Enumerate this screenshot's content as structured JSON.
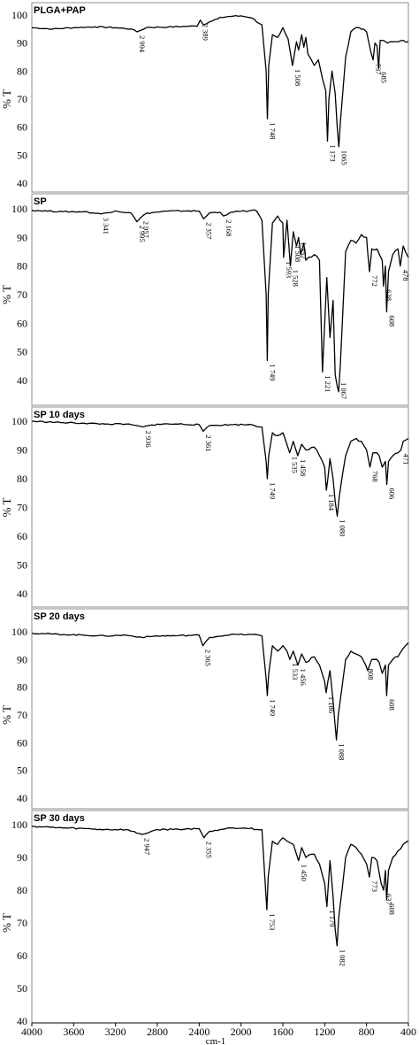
{
  "chart_data": [
    {
      "type": "line",
      "title": "PLGA+PAP",
      "ylabel": "% T",
      "ylim": [
        40,
        100
      ],
      "yticks": [
        "40",
        "50",
        "60",
        "70",
        "80",
        "90",
        "100"
      ],
      "series": [
        {
          "x": [
            4000,
            3800,
            3600,
            3400,
            3200,
            3050,
            2994,
            2900,
            2700,
            2500,
            2420,
            2389,
            2360,
            2300,
            2200,
            2100,
            2000,
            1900,
            1850,
            1800,
            1760,
            1748,
            1735,
            1700,
            1650,
            1600,
            1550,
            1508,
            1470,
            1450,
            1420,
            1400,
            1380,
            1360,
            1300,
            1260,
            1220,
            1190,
            1173,
            1160,
            1130,
            1100,
            1080,
            1065,
            1050,
            1000,
            950,
            900,
            850,
            800,
            760,
            737,
            720,
            700,
            685,
            670,
            600,
            500,
            450,
            400
          ],
          "y": [
            95.5,
            95.0,
            95.5,
            95.8,
            95.5,
            95.0,
            94.0,
            95.6,
            95.7,
            96.0,
            96.0,
            98.2,
            96.5,
            97.6,
            99.2,
            99.5,
            99.7,
            99.0,
            97.5,
            96.5,
            80.0,
            63.0,
            82.0,
            93.0,
            92.0,
            95.5,
            91.5,
            82.0,
            90.5,
            87.5,
            93.0,
            88.5,
            92.0,
            86.0,
            82.0,
            84.0,
            77.0,
            73.0,
            55.0,
            70.0,
            80.0,
            72.0,
            60.0,
            53.0,
            62.0,
            85.0,
            94.0,
            95.5,
            95.0,
            94.0,
            87.0,
            84.0,
            90.0,
            89.0,
            81.0,
            91.0,
            90.0,
            90.5,
            91.0,
            90.5
          ]
        }
      ],
      "peak_labels": [
        {
          "x": 2994,
          "label": "2 994"
        },
        {
          "x": 2389,
          "label": "2 389"
        },
        {
          "x": 1748,
          "label": "1 748"
        },
        {
          "x": 1508,
          "label": "1 508"
        },
        {
          "x": 1173,
          "label": "1 173"
        },
        {
          "x": 1065,
          "label": "1065"
        },
        {
          "x": 737,
          "label": "737"
        },
        {
          "x": 685,
          "label": "685"
        }
      ]
    },
    {
      "type": "line",
      "title": "SP",
      "ylabel": "% T",
      "ylim": [
        30,
        100
      ],
      "yticks": [
        "40",
        "50",
        "60",
        "70",
        "80",
        "90",
        "100"
      ],
      "series": [
        {
          "x": [
            4000,
            3700,
            3500,
            3341,
            3200,
            3050,
            2995,
            2957,
            2900,
            2700,
            2500,
            2400,
            2357,
            2300,
            2200,
            2168,
            2100,
            2000,
            1850,
            1800,
            1760,
            1749,
            1740,
            1700,
            1650,
            1600,
            1593,
            1560,
            1528,
            1500,
            1470,
            1450,
            1430,
            1400,
            1380,
            1300,
            1250,
            1221,
            1200,
            1180,
            1150,
            1120,
            1100,
            1080,
            1067,
            1050,
            1000,
            950,
            900,
            850,
            800,
            790,
            772,
            750,
            700,
            650,
            638,
            620,
            608,
            590,
            550,
            500,
            478,
            450,
            400
          ],
          "y": [
            99.5,
            99.0,
            99.0,
            98.2,
            99.3,
            98.5,
            95.5,
            97.0,
            98.5,
            99.2,
            99.3,
            99.2,
            96.5,
            98.6,
            98.8,
            97.5,
            98.8,
            99.2,
            99.2,
            96.0,
            70.0,
            47.0,
            70.0,
            95.0,
            97.5,
            95.0,
            83.0,
            96.0,
            80.0,
            92.0,
            87.0,
            90.0,
            84.0,
            88.0,
            82.0,
            84.0,
            82.0,
            43.0,
            60.0,
            76.0,
            55.0,
            68.0,
            42.0,
            38.0,
            36.0,
            46.0,
            85.0,
            89.0,
            88.0,
            91.0,
            90.0,
            85.0,
            78.0,
            86.0,
            86.0,
            82.0,
            73.0,
            80.0,
            64.0,
            78.0,
            84.0,
            86.0,
            80.0,
            87.0,
            83.0
          ]
        }
      ],
      "peak_labels": [
        {
          "x": 3341,
          "label": "3 341"
        },
        {
          "x": 2995,
          "label": "2 995"
        },
        {
          "x": 2957,
          "label": "2 957"
        },
        {
          "x": 2357,
          "label": "2 357"
        },
        {
          "x": 2168,
          "label": "2 168"
        },
        {
          "x": 1749,
          "label": "1 749"
        },
        {
          "x": 1593,
          "label": "1 593"
        },
        {
          "x": 1528,
          "label": "1 528"
        },
        {
          "x": 1508,
          "label": "1 508"
        },
        {
          "x": 1452,
          "label": "1 452"
        },
        {
          "x": 1221,
          "label": "1 221"
        },
        {
          "x": 1067,
          "label": "1 067"
        },
        {
          "x": 772,
          "label": "772"
        },
        {
          "x": 638,
          "label": "638"
        },
        {
          "x": 608,
          "label": "608"
        },
        {
          "x": 478,
          "label": "478"
        }
      ]
    },
    {
      "type": "line",
      "title": "SP 10 days",
      "ylabel": "% T",
      "ylim": [
        30,
        100
      ],
      "yticks": [
        "40",
        "50",
        "60",
        "70",
        "80",
        "90",
        "100"
      ],
      "series": [
        {
          "x": [
            4000,
            3700,
            3500,
            3300,
            3100,
            2936,
            2800,
            2600,
            2400,
            2361,
            2300,
            2100,
            1900,
            1800,
            1760,
            1749,
            1735,
            1700,
            1650,
            1600,
            1580,
            1535,
            1500,
            1458,
            1420,
            1380,
            1300,
            1250,
            1200,
            1184,
            1170,
            1150,
            1120,
            1100,
            1080,
            1060,
            1000,
            950,
            900,
            850,
            800,
            768,
            740,
            700,
            680,
            650,
            620,
            606,
            590,
            550,
            500,
            471,
            450,
            400
          ],
          "y": [
            100.0,
            99.5,
            99.3,
            99.0,
            99.0,
            98.0,
            99.0,
            99.0,
            98.8,
            96.5,
            98.5,
            98.8,
            98.8,
            98.0,
            86.0,
            80.0,
            88.0,
            96.0,
            95.0,
            96.0,
            94.0,
            89.0,
            93.0,
            88.0,
            92.0,
            90.0,
            91.0,
            88.0,
            84.0,
            76.0,
            80.0,
            87.0,
            80.0,
            72.0,
            67.0,
            74.0,
            88.0,
            93.0,
            94.0,
            93.0,
            90.0,
            84.0,
            89.0,
            89.0,
            88.0,
            84.0,
            86.0,
            78.0,
            86.0,
            88.0,
            89.0,
            90.0,
            93.0,
            94.0
          ]
        }
      ],
      "peak_labels": [
        {
          "x": 2936,
          "label": "2 936"
        },
        {
          "x": 2361,
          "label": "2 361"
        },
        {
          "x": 1749,
          "label": "1 749"
        },
        {
          "x": 1535,
          "label": "1 535"
        },
        {
          "x": 1458,
          "label": "1 458"
        },
        {
          "x": 1184,
          "label": "1 184"
        },
        {
          "x": 1080,
          "label": "1 080"
        },
        {
          "x": 768,
          "label": "768"
        },
        {
          "x": 606,
          "label": "606"
        },
        {
          "x": 471,
          "label": "471"
        }
      ]
    },
    {
      "type": "line",
      "title": "SP 20 days",
      "ylabel": "% T",
      "ylim": [
        30,
        100
      ],
      "yticks": [
        "40",
        "50",
        "60",
        "70",
        "80",
        "90",
        "100"
      ],
      "series": [
        {
          "x": [
            4000,
            3700,
            3500,
            3300,
            3100,
            2950,
            2800,
            2600,
            2400,
            2365,
            2300,
            2100,
            1900,
            1800,
            1760,
            1749,
            1735,
            1700,
            1650,
            1600,
            1560,
            1533,
            1500,
            1456,
            1420,
            1380,
            1300,
            1250,
            1200,
            1186,
            1170,
            1150,
            1120,
            1100,
            1088,
            1070,
            1000,
            950,
            900,
            850,
            808,
            790,
            750,
            700,
            680,
            650,
            620,
            608,
            590,
            550,
            500,
            450,
            400
          ],
          "y": [
            99.5,
            99.0,
            98.8,
            98.5,
            98.8,
            98.0,
            98.5,
            98.6,
            98.8,
            95.0,
            98.0,
            99.0,
            99.0,
            98.5,
            83.0,
            77.0,
            85.0,
            95.0,
            93.0,
            95.0,
            93.0,
            90.0,
            93.0,
            88.0,
            92.0,
            89.0,
            91.0,
            88.0,
            82.0,
            78.0,
            82.0,
            86.0,
            75.0,
            66.0,
            61.0,
            70.0,
            90.0,
            93.0,
            92.0,
            91.0,
            88.0,
            86.0,
            90.0,
            90.0,
            89.0,
            85.0,
            88.0,
            77.0,
            88.0,
            90.0,
            91.0,
            94.0,
            96.0
          ]
        }
      ],
      "peak_labels": [
        {
          "x": 2365,
          "label": "2 365"
        },
        {
          "x": 1749,
          "label": "1 749"
        },
        {
          "x": 1533,
          "label": "1 533"
        },
        {
          "x": 1456,
          "label": "1 456"
        },
        {
          "x": 1186,
          "label": "1 186"
        },
        {
          "x": 1088,
          "label": "1 088"
        },
        {
          "x": 808,
          "label": "808"
        },
        {
          "x": 608,
          "label": "608"
        }
      ]
    },
    {
      "type": "line",
      "title": "SP 30 days",
      "ylabel": "% T",
      "ylim": [
        30,
        100
      ],
      "yticks": [
        "40",
        "50",
        "60",
        "70",
        "80",
        "90",
        "100"
      ],
      "xlabel": "cm-1",
      "xlim": [
        4000,
        400
      ],
      "xticks": [
        "4000",
        "3600",
        "3200",
        "2800",
        "2400",
        "2000",
        "1600",
        "1200",
        "800",
        "400"
      ],
      "series": [
        {
          "x": [
            4000,
            3700,
            3500,
            3300,
            3100,
            2947,
            2800,
            2600,
            2400,
            2355,
            2300,
            2100,
            1900,
            1800,
            1765,
            1753,
            1740,
            1700,
            1650,
            1600,
            1560,
            1500,
            1450,
            1420,
            1380,
            1300,
            1250,
            1200,
            1179,
            1165,
            1150,
            1120,
            1100,
            1082,
            1065,
            1000,
            950,
            900,
            850,
            800,
            773,
            750,
            700,
            660,
            637,
            620,
            608,
            590,
            550,
            500,
            450,
            400
          ],
          "y": [
            99.5,
            99.0,
            98.8,
            98.5,
            98.5,
            97.0,
            98.5,
            98.6,
            98.8,
            96.0,
            98.0,
            99.0,
            99.0,
            98.5,
            80.0,
            74.0,
            84.0,
            95.0,
            94.0,
            96.0,
            95.0,
            94.0,
            89.0,
            93.0,
            90.0,
            91.0,
            88.0,
            82.0,
            75.0,
            82.0,
            89.0,
            78.0,
            68.0,
            63.0,
            72.0,
            90.0,
            94.0,
            93.0,
            91.0,
            88.0,
            84.0,
            90.0,
            89.0,
            82.0,
            80.0,
            86.0,
            77.0,
            86.0,
            90.0,
            92.0,
            94.0,
            95.0
          ]
        }
      ],
      "peak_labels": [
        {
          "x": 2947,
          "label": "2 947"
        },
        {
          "x": 2355,
          "label": "2 355"
        },
        {
          "x": 1753,
          "label": "1 753"
        },
        {
          "x": 1450,
          "label": "1 450"
        },
        {
          "x": 1179,
          "label": "1 179"
        },
        {
          "x": 1082,
          "label": "1 082"
        },
        {
          "x": 773,
          "label": "773"
        },
        {
          "x": 637,
          "label": "637"
        },
        {
          "x": 608,
          "label": "608"
        }
      ]
    }
  ]
}
